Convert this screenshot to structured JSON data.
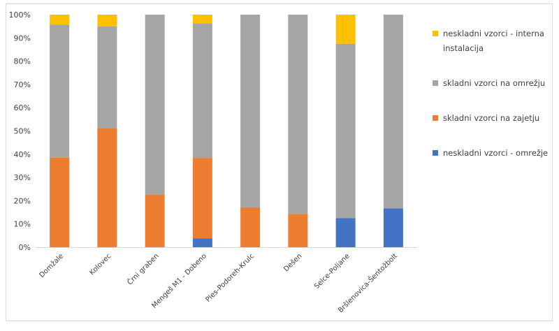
{
  "chart_data": {
    "type": "bar",
    "stacked": true,
    "categories": [
      "Domžale",
      "Kolovec",
      "Črni graben",
      "Mengeš M1 - Dobeno",
      "Ples-Podoreh-Krulc",
      "Dešen",
      "Selce-Poljane",
      "Bršlenovica-Šentožbolt"
    ],
    "series": [
      {
        "name": "neskladni vzorci - omrežje",
        "color": "#4472c4",
        "values": [
          0,
          0,
          0,
          3.8,
          0,
          0,
          12.5,
          16.7
        ]
      },
      {
        "name": "skladni vzorci na zajetju",
        "color": "#ed7d31",
        "values": [
          38.5,
          51.3,
          22.7,
          34.6,
          17.2,
          14.3,
          0,
          0
        ]
      },
      {
        "name": "skladni vzorci na omrežju",
        "color": "#a5a5a5",
        "values": [
          57.2,
          43.7,
          77.3,
          57.9,
          82.8,
          85.7,
          75.0,
          83.3
        ]
      },
      {
        "name": "neskladni vzorci - interna instalacija",
        "color": "#ffc000",
        "values": [
          4.3,
          5.0,
          0,
          3.7,
          0,
          0,
          12.5,
          0
        ]
      }
    ],
    "yticks": [
      "0%",
      "10%",
      "20%",
      "30%",
      "40%",
      "50%",
      "60%",
      "70%",
      "80%",
      "90%",
      "100%"
    ],
    "ylim": [
      0,
      100
    ],
    "grid": false,
    "legend_position": "right"
  },
  "legend": [
    {
      "label": "neskladni vzorci - interna instalacija",
      "color": "#ffc000"
    },
    {
      "label": "skladni vzorci na omrežju",
      "color": "#a5a5a5"
    },
    {
      "label": "skladni vzorci na zajetju",
      "color": "#ed7d31"
    },
    {
      "label": "neskladni vzorci - omrežje",
      "color": "#4472c4"
    }
  ]
}
